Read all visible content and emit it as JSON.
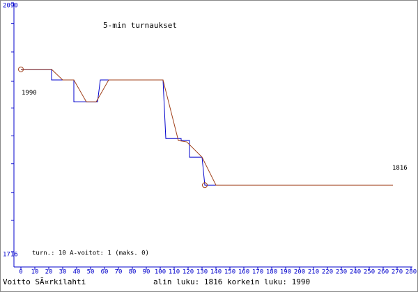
{
  "chart_data": {
    "type": "line",
    "title": "5-min turnaukset",
    "xlim": [
      0,
      280
    ],
    "xticks": [
      0,
      10,
      20,
      30,
      40,
      50,
      60,
      70,
      80,
      90,
      100,
      110,
      120,
      130,
      140,
      150,
      160,
      170,
      180,
      190,
      200,
      210,
      220,
      230,
      240,
      250,
      260,
      270,
      280
    ],
    "ylim": [
      1716,
      2090
    ],
    "yticks": [
      1716,
      2090
    ],
    "yminorticks": [
      2059,
      2016,
      1972,
      1932,
      1890,
      1848,
      1805,
      1763
    ],
    "series": [
      {
        "color": "#0000cc",
        "x": [
          0,
          22,
          22,
          38,
          38,
          55,
          57,
          102,
          104,
          115,
          115,
          121,
          121,
          130,
          132,
          140
        ],
        "values": [
          1990,
          1990,
          1974,
          1974,
          1941,
          1941,
          1974,
          1974,
          1886,
          1886,
          1883,
          1883,
          1858,
          1858,
          1816,
          1816
        ]
      },
      {
        "color": "#a0401a",
        "x": [
          0,
          22,
          30,
          38,
          47,
          54,
          63,
          102,
          113,
          119,
          130,
          140,
          267
        ],
        "values": [
          1990,
          1990,
          1974,
          1974,
          1941,
          1941,
          1974,
          1974,
          1883,
          1881,
          1858,
          1816,
          1816
        ]
      }
    ],
    "markers": {
      "x": [
        0,
        132
      ],
      "y": [
        1990,
        1816
      ]
    },
    "info": "turn.: 10  A-voitot: 1  (maks. 0)",
    "author": "Voitto SÃ¤rkilahti",
    "summary": "alin luku: 1816  korkein luku: 1990"
  }
}
